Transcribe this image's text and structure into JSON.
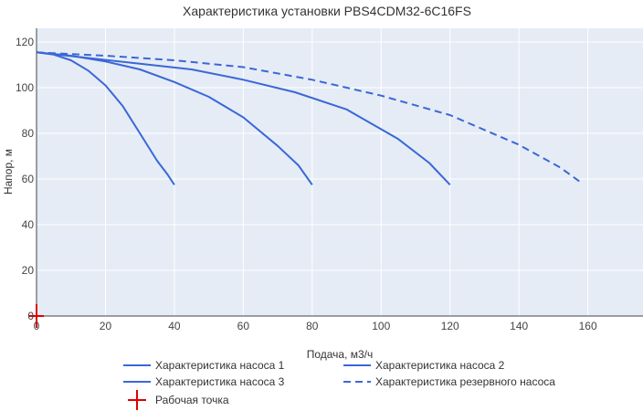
{
  "chart_data": {
    "type": "line",
    "title": "Характеристика установки PBS4CDM32-6C16FS",
    "xlabel": "Подача, м3/ч",
    "ylabel": "Напор, м",
    "xlim": [
      0,
      176
    ],
    "ylim": [
      0,
      126
    ],
    "xticks": [
      0,
      20,
      40,
      60,
      80,
      100,
      120,
      140,
      160
    ],
    "yticks": [
      0,
      20,
      40,
      60,
      80,
      100,
      120
    ],
    "grid": true,
    "legend_position": "bottom",
    "colors": {
      "series": "#3b67d6",
      "operating_point": "#e00000",
      "plot_bg": "#e5ecf6",
      "grid": "#ffffff"
    },
    "series": [
      {
        "name": "Характеристика насоса 1",
        "style": "solid",
        "x": [
          0,
          5,
          10,
          15,
          20,
          25,
          30,
          35,
          38,
          40
        ],
        "y": [
          115.5,
          114.5,
          112,
          107.5,
          101,
          92,
          80,
          68,
          62,
          57.5
        ]
      },
      {
        "name": "Характеристика насоса 2",
        "style": "solid",
        "x": [
          0,
          10,
          20,
          30,
          40,
          50,
          60,
          70,
          76,
          80
        ],
        "y": [
          115.5,
          114,
          111.5,
          108,
          102.5,
          96,
          87,
          74.5,
          66,
          57.5
        ]
      },
      {
        "name": "Характеристика насоса 3",
        "style": "solid",
        "x": [
          0,
          15,
          30,
          45,
          60,
          75,
          90,
          105,
          114,
          120
        ],
        "y": [
          115.5,
          113,
          110.5,
          108,
          103.5,
          98,
          90.5,
          77.5,
          67,
          57.5
        ]
      },
      {
        "name": "Характеристика резервного насоса",
        "style": "dashed",
        "x": [
          0,
          20,
          40,
          60,
          80,
          100,
          120,
          140,
          152,
          158
        ],
        "y": [
          115.5,
          114,
          112,
          109,
          103.5,
          96.5,
          88,
          75,
          65,
          58.5
        ]
      },
      {
        "name": "Рабочая точка",
        "style": "marker",
        "x": [
          0
        ],
        "y": [
          0
        ]
      }
    ]
  }
}
